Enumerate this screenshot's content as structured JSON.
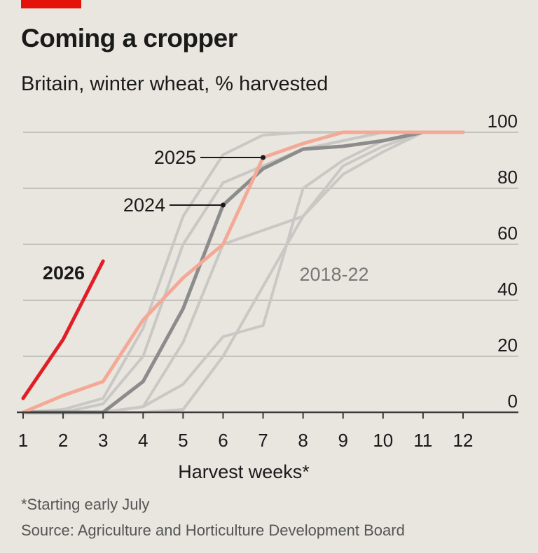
{
  "header": {
    "title": "Coming a cropper",
    "subtitle": "Britain, winter wheat, % harvested"
  },
  "footer": {
    "footnote": "*Starting early July",
    "source": "Source: Agriculture and Horticulture Development Board"
  },
  "colors": {
    "accent": "#e3120b",
    "series_2026": "#e01e26",
    "series_2025": "#f4a996",
    "series_2024": "#8c8c8c",
    "series_2018_22": "#c9c8c4",
    "grid": "#c4c2bc",
    "axis": "#3a3a3a",
    "text": "#1a1a1a",
    "muted": "#777777"
  },
  "chart_data": {
    "type": "line",
    "xlabel": "Harvest weeks*",
    "ylabel": "",
    "x_ticks": [
      1,
      2,
      3,
      4,
      5,
      6,
      7,
      8,
      9,
      10,
      11,
      12
    ],
    "y_ticks": [
      0,
      20,
      40,
      60,
      80,
      100
    ],
    "xlim": [
      1,
      12
    ],
    "ylim": [
      0,
      100
    ],
    "grid": true,
    "y_axis_side": "right",
    "series": [
      {
        "name": "2018-22",
        "group": "2018-22",
        "x": [
          1,
          2,
          3,
          4,
          5,
          6,
          7,
          8,
          9,
          10,
          11,
          12
        ],
        "values": [
          0,
          0,
          0,
          0,
          1,
          20,
          45,
          70,
          88,
          95,
          100,
          100
        ]
      },
      {
        "name": "2018-22",
        "group": "2018-22",
        "x": [
          1,
          2,
          3,
          4,
          5,
          6,
          7,
          8,
          9,
          10,
          11,
          12
        ],
        "values": [
          0,
          0,
          0,
          2,
          10,
          27,
          31,
          80,
          90,
          97,
          100,
          100
        ]
      },
      {
        "name": "2018-22",
        "group": "2018-22",
        "x": [
          1,
          2,
          3,
          4,
          5,
          6,
          7,
          8,
          9,
          10,
          11,
          12
        ],
        "values": [
          0,
          0,
          0,
          2,
          25,
          60,
          65,
          70,
          85,
          93,
          100,
          100
        ]
      },
      {
        "name": "2018-22",
        "group": "2018-22",
        "x": [
          1,
          2,
          3,
          4,
          5,
          6,
          7,
          8,
          9,
          10,
          11,
          12
        ],
        "values": [
          0,
          0,
          3,
          20,
          60,
          82,
          88,
          94,
          97,
          100,
          100,
          100
        ]
      },
      {
        "name": "2018-22",
        "group": "2018-22",
        "x": [
          1,
          2,
          3,
          4,
          5,
          6,
          7,
          8,
          9,
          10,
          11,
          12
        ],
        "values": [
          0,
          1,
          5,
          30,
          70,
          92,
          99,
          100,
          100,
          100,
          100,
          100
        ]
      },
      {
        "name": "2024",
        "x": [
          1,
          2,
          3,
          4,
          5,
          6,
          7,
          8,
          9,
          10,
          11,
          12
        ],
        "values": [
          0,
          0,
          0,
          11,
          37,
          74,
          87,
          94,
          95,
          97,
          100,
          100
        ]
      },
      {
        "name": "2025",
        "x": [
          1,
          2,
          3,
          4,
          5,
          6,
          7,
          8,
          9,
          10,
          11,
          12
        ],
        "values": [
          0,
          6,
          11,
          33,
          48,
          60,
          91,
          96,
          100,
          100,
          100,
          100
        ]
      },
      {
        "name": "2026",
        "x": [
          1,
          2,
          3
        ],
        "values": [
          5,
          26,
          54
        ]
      }
    ],
    "annotations": [
      {
        "text": "2026",
        "series": "2026"
      },
      {
        "text": "2025",
        "series": "2025",
        "point_x": 7
      },
      {
        "text": "2024",
        "series": "2024",
        "point_x": 6
      },
      {
        "text": "2018-22",
        "series": "2018-22"
      }
    ]
  }
}
